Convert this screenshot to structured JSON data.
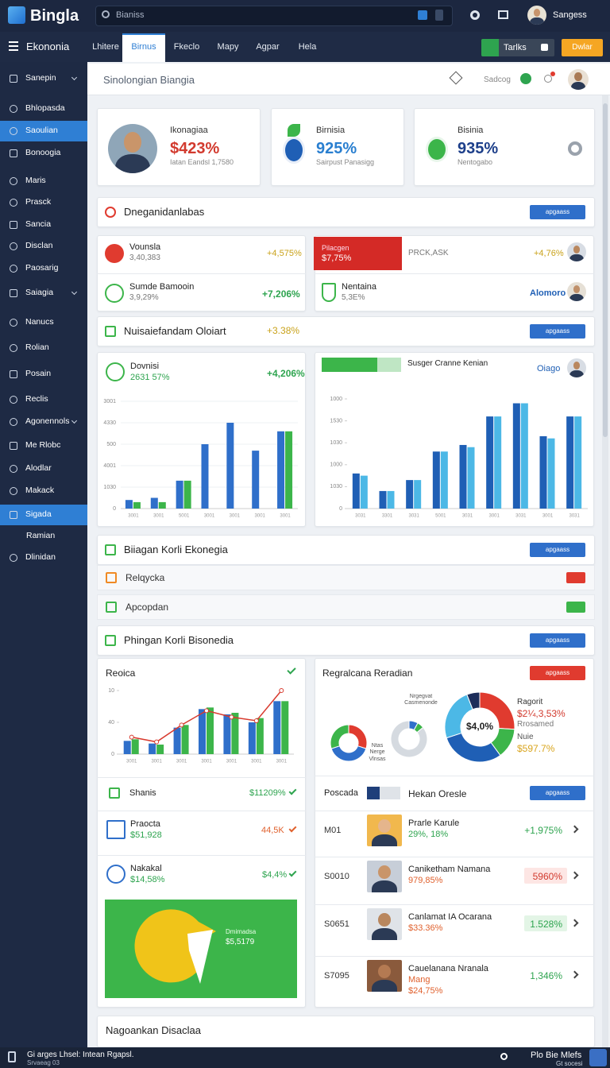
{
  "header": {
    "logo": "Bingla",
    "search": "Bianiss",
    "user": "Sangess"
  },
  "menu": {
    "title": "Ekononia",
    "tabs": [
      "Lhitere",
      "Birnus",
      "Fkeclo",
      "Mapy",
      "Agpar",
      "Hela"
    ],
    "active_tab": 1,
    "buttons": [
      "Tarlks",
      "Dwlar"
    ]
  },
  "sidebar": {
    "items": [
      "Sanepin",
      "Bhlopasda",
      "Saoulian",
      "Bonoogia",
      "Maris",
      "Prasck",
      "Sancia",
      "Disclan",
      "Paosarig",
      "Saiagia",
      "Nanucs",
      "Rolian",
      "Posain",
      "Reclis",
      "Agonennols",
      "Me Rlobc",
      "Alodlar",
      "Makack",
      "Sigada",
      "Ramian",
      "Dlinidan"
    ],
    "active": [
      2,
      18
    ]
  },
  "page": {
    "title": "Sinolongian Biangia",
    "action": "Sadcog"
  },
  "stat_cards": [
    {
      "title": "Ikonagiaa",
      "value": "$423%",
      "note": "Iatan Eandsl 1,7580"
    },
    {
      "title": "Birnisia",
      "value": "925%",
      "note": "Sairpust Panasigg"
    },
    {
      "title": "Bisinia",
      "value": "935%",
      "note": "Nentogabo"
    }
  ],
  "section_button": "apgaass",
  "sections": [
    {
      "title": "Dneganidanlabas"
    },
    {
      "title": "Nuisaiefandam Oloiart",
      "change": "+3.38%"
    },
    {
      "title": "Biiagan Korli Ekonegia",
      "rows": [
        "Relqycka",
        "Apcopdan"
      ]
    },
    {
      "title": "Phingan Korli Bisonedia"
    },
    {
      "title": "Nagoankan Disaclaa"
    }
  ],
  "metrics": {
    "left": [
      {
        "name": "Vounsla",
        "sub": "3,40,383",
        "change": "+4,575%"
      },
      {
        "name": "Sumde Bamooin",
        "sub": "3,9,29%",
        "change": "+7,206%"
      }
    ],
    "right": [
      {
        "badge_title": "Pilacgen",
        "badge_value": "$7,75%",
        "label": "PRCK,ASK",
        "change": "+4,76%"
      },
      {
        "name": "Nentaina",
        "sub": "5,3E%",
        "link": "Alomoro"
      }
    ]
  },
  "chart_panels": [
    {
      "title": "Dovnisi",
      "value": "2631 57%",
      "change": "+4,206%",
      "chart": {
        "type": "bar",
        "categories": [
          "3001",
          "3001",
          "5001",
          "3001",
          "3001",
          "3001",
          "3001"
        ],
        "series": [
          {
            "color": "#2f6fca",
            "values": [
              0.4,
              0.5,
              1.3,
              3.0,
              4.0,
              2.7,
              3.6
            ]
          },
          {
            "color": "#3cb54a",
            "values": [
              0.3,
              0.3,
              1.3,
              null,
              null,
              null,
              3.6
            ]
          }
        ],
        "ylim": [
          0,
          5
        ],
        "yticks": [
          0,
          {
            "value": 1,
            "label": "1030"
          },
          {
            "value": 2,
            "label": "4001"
          },
          {
            "value": 3,
            "label": "500"
          },
          {
            "value": 4,
            "label": "4330"
          },
          {
            "value": 5,
            "label": "3001"
          }
        ],
        "grid": true
      }
    },
    {
      "title": "Susger Cranne Kenian",
      "link": "Oiago",
      "chart": {
        "type": "bar",
        "categories": [
          "3031",
          "3301",
          "3031",
          "5001",
          "3031",
          "3001",
          "3031",
          "3001",
          "3031"
        ],
        "series": [
          {
            "color": "#1f5fb5",
            "values": [
              1.6,
              0.8,
              1.3,
              2.6,
              2.9,
              4.2,
              4.8,
              3.3,
              4.2
            ]
          },
          {
            "color": "#4cb8e6",
            "values": [
              1.5,
              0.8,
              1.3,
              2.6,
              2.8,
              4.2,
              4.8,
              3.2,
              4.2
            ]
          }
        ],
        "ylim": [
          0,
          5
        ],
        "yticks": [
          0,
          {
            "value": 1,
            "label": "1030"
          },
          {
            "value": 2,
            "label": "1000"
          },
          {
            "value": 3,
            "label": "1030"
          },
          {
            "value": 4,
            "label": "1530"
          },
          {
            "value": 5,
            "label": "1000"
          }
        ],
        "grid": false
      }
    }
  ],
  "revenue_panel": {
    "title": "Reoica",
    "chart": {
      "type": "bar",
      "categories": [
        "3001",
        "3001",
        "3001",
        "3001",
        "3001",
        "3001",
        "3001"
      ],
      "series": [
        {
          "color": "#2f6fca",
          "values": [
            2.5,
            2.0,
            5.0,
            8.5,
            7.5,
            6.0,
            10.0
          ]
        },
        {
          "color": "#3cb54a",
          "values": [
            2.8,
            1.8,
            5.5,
            8.8,
            7.8,
            6.8,
            10.0
          ]
        },
        {
          "type": "line",
          "color": "#d83a2e",
          "values": [
            3.2,
            2.3,
            5.5,
            8.2,
            7.0,
            6.3,
            12.0
          ]
        }
      ],
      "ylim": [
        0,
        12
      ],
      "yticks": [
        0,
        {
          "value": 6,
          "label": "40"
        },
        {
          "value": 12,
          "label": "10"
        }
      ],
      "grid": false
    },
    "items": [
      {
        "name": "Shanis",
        "value": "$11209%"
      },
      {
        "name": "Praocta",
        "value": "$51,928",
        "change": "44,5K"
      },
      {
        "name": "Nakakal",
        "value": "$14,58%",
        "change": "$4,4%"
      }
    ],
    "promo": {
      "title": "Dmimadsa",
      "value": "$5,5179"
    }
  },
  "share_panel": {
    "title": "Regralcana Reradian",
    "small_labels": [
      "Nrgegvat Casmenonde",
      "Ntas Nerge Vlnsas"
    ],
    "donuts": [
      {
        "type": "pie",
        "values": [
          30,
          40,
          30
        ],
        "colors": [
          "#e03b2f",
          "#2f6fca",
          "#3cb54a"
        ]
      },
      {
        "type": "pie",
        "values": [
          8,
          6,
          86
        ],
        "colors": [
          "#2f6fca",
          "#3cb54a",
          "#d5dae0"
        ]
      },
      {
        "type": "pie",
        "values": [
          26,
          14,
          30,
          24,
          6
        ],
        "colors": [
          "#e03b2f",
          "#3cb54a",
          "#1f5fb5",
          "#4cb8e6",
          "#1c2d5a"
        ],
        "center_label": "$4,0%"
      }
    ],
    "legend": [
      {
        "name": "Ragorit",
        "value": "$2¼,3,53%",
        "note": "Rrosamed"
      },
      {
        "name": "Nuie",
        "value": "$597.7%"
      }
    ],
    "list_header": [
      "Poscada",
      "Hekan Oresle"
    ],
    "people": [
      {
        "id": "M01",
        "name": "Prarle Karule",
        "sub": "29%, 18%",
        "change": "+1,975%"
      },
      {
        "id": "S0010",
        "name": "Caniketham Namana",
        "sub": "979,85%",
        "change": "5960%"
      },
      {
        "id": "S0651",
        "name": "Canlamat IA Ocarana",
        "sub": "$33.36%",
        "change": "1.528%"
      },
      {
        "id": "S7095",
        "name": "Cauelanana Nranala",
        "sub": "Mang",
        "sub2": "$24,75%",
        "change": "1,346%"
      }
    ]
  },
  "footer": {
    "left": [
      "Gi arges Lhsel: Intean Rgapsl.",
      "Srvaeag 03"
    ],
    "right": [
      "Plo Bie Mlefs",
      "Gt socesi"
    ]
  }
}
